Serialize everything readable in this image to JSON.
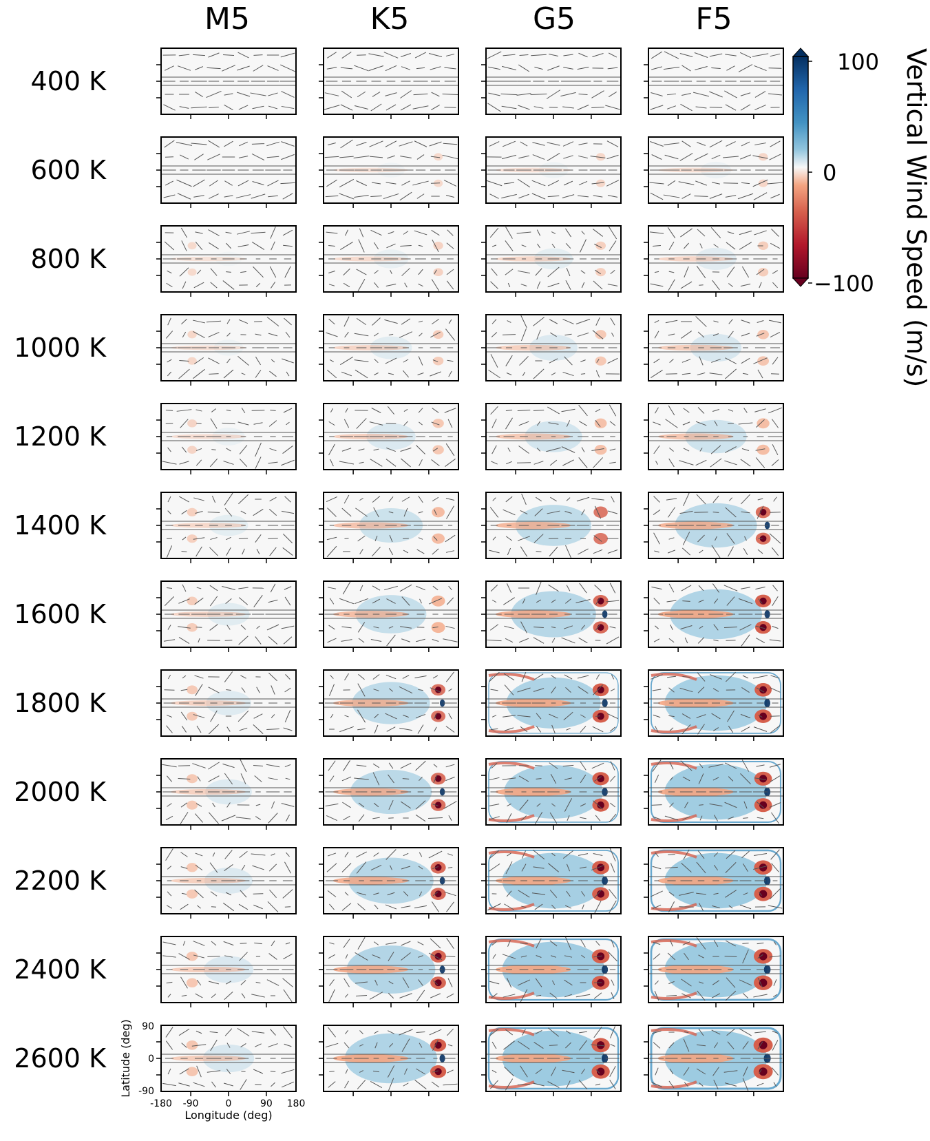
{
  "chart_data": {
    "type": "heatmap",
    "title": "",
    "columns": [
      "M5",
      "K5",
      "G5",
      "F5"
    ],
    "rows": [
      "400 K",
      "600 K",
      "800 K",
      "1000 K",
      "1200 K",
      "1400 K",
      "1600 K",
      "1800 K",
      "2000 K",
      "2200 K",
      "2400 K",
      "2600 K"
    ],
    "xlabel": "Longitude (deg)",
    "ylabel": "Latitude (deg)",
    "xticks": [
      "-180",
      "-90",
      "0",
      "90",
      "180"
    ],
    "yticks": [
      "90",
      "0",
      "-90"
    ],
    "xlim": [
      -180,
      180
    ],
    "ylim": [
      -90,
      90
    ],
    "colorbar": {
      "label": "Vertical Wind Speed (m/s)",
      "ticks": [
        "100",
        "0",
        "−100"
      ],
      "range": [
        -100,
        100
      ],
      "colormap": "RdBu",
      "extend": "both"
    }
  },
  "colors": {
    "deep_red": "#67001f",
    "red": "#d6604d",
    "light_red": "#f4a582",
    "neutral": "#f7f7f7",
    "light_blue": "#92c5de",
    "blue": "#4393c3",
    "deep_blue": "#053061",
    "quiver": "#555555"
  }
}
